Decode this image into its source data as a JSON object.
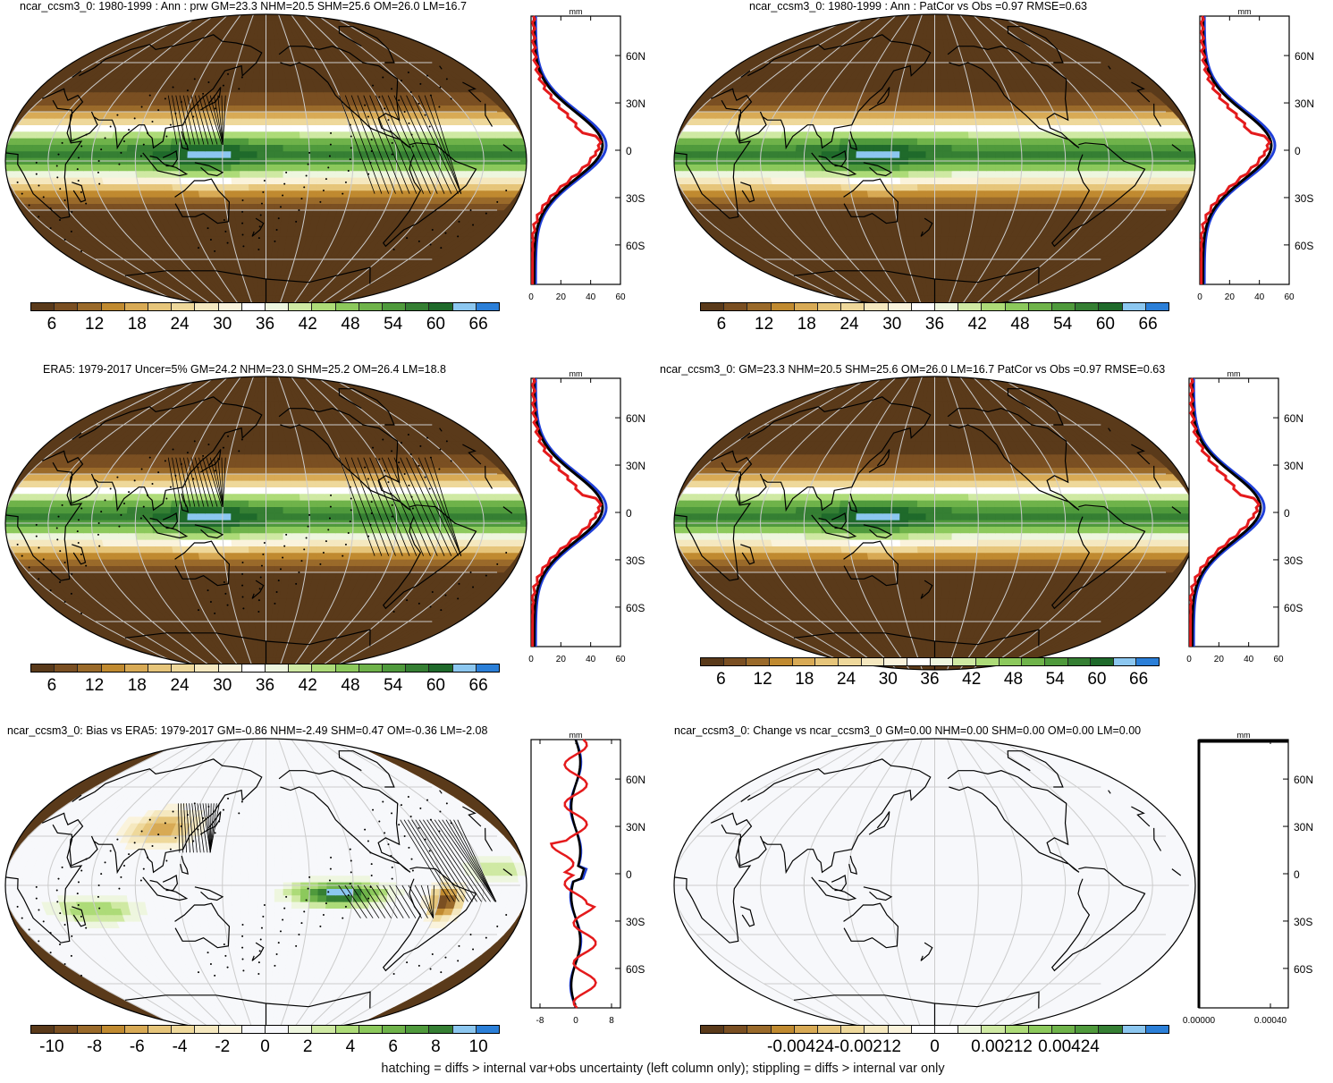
{
  "colors": {
    "land": "#f7f8fb",
    "blue": "#1f3fd8",
    "black": "#000000",
    "red": "#e41a1c",
    "grid": "#cccccc",
    "prw_scale": [
      "#5a3a1a",
      "#7a4f22",
      "#9a6a2a",
      "#c08a30",
      "#d8aa55",
      "#e6c57a",
      "#eed89b",
      "#f5e8bf",
      "#faf3dc",
      "#ffffff",
      "#eef6df",
      "#cfe9a3",
      "#addb78",
      "#8cc95c",
      "#6fb34a",
      "#4f9a3c",
      "#357f33",
      "#1f6a2b",
      "#8cc7f0",
      "#2b7fd8"
    ],
    "bias_scale": [
      "#5a3a1a",
      "#7a4f22",
      "#9a6a2a",
      "#c08a30",
      "#d8aa55",
      "#e6c57a",
      "#eed89b",
      "#f5e8bf",
      "#faf3dc",
      "#f7f8fb",
      "#f7f8fb",
      "#eef6df",
      "#cfe9a3",
      "#addb78",
      "#8cc95c",
      "#6fb34a",
      "#4f9a3c",
      "#357f33",
      "#8cc7f0",
      "#2b7fd8"
    ]
  },
  "panels": [
    {
      "title": "ncar_ccsm3_0: 1980-1999 : Ann : prw GM=23.3 NHM=20.5 SHM=25.6 OM=26.0 LM=16.7",
      "kind": "prw",
      "hatched": true,
      "colorbar_labels": [
        "6",
        "12",
        "18",
        "24",
        "30",
        "36",
        "42",
        "48",
        "54",
        "60",
        "66"
      ],
      "profile": {
        "unit": "mm",
        "x_ticks": [
          "0",
          "20",
          "40",
          "60"
        ],
        "lat_ticks": [
          "60N",
          "30N",
          "0",
          "30S",
          "60S"
        ],
        "xmin": 0,
        "xmax": 60
      }
    },
    {
      "title": "ncar_ccsm3_0: 1980-1999 : Ann : PatCor vs Obs =0.97 RMSE=0.63",
      "kind": "prw",
      "hatched": false,
      "colorbar_labels": [
        "6",
        "12",
        "18",
        "24",
        "30",
        "36",
        "42",
        "48",
        "54",
        "60",
        "66"
      ],
      "profile": {
        "unit": "mm",
        "x_ticks": [
          "0",
          "20",
          "40",
          "60"
        ],
        "lat_ticks": [
          "60N",
          "30N",
          "0",
          "30S",
          "60S"
        ],
        "xmin": 0,
        "xmax": 60
      }
    },
    {
      "title": "ERA5: 1979-2017 Uncer=5% GM=24.2 NHM=23.0 SHM=25.2 OM=26.4 LM=18.8",
      "kind": "prw",
      "hatched": true,
      "colorbar_labels": [
        "6",
        "12",
        "18",
        "24",
        "30",
        "36",
        "42",
        "48",
        "54",
        "60",
        "66"
      ],
      "profile": {
        "unit": "mm",
        "x_ticks": [
          "0",
          "20",
          "40",
          "60"
        ],
        "lat_ticks": [
          "60N",
          "30N",
          "0",
          "30S",
          "60S"
        ],
        "xmin": 0,
        "xmax": 60
      }
    },
    {
      "title": "ncar_ccsm3_0: GM=23.3 NHM=20.5 SHM=25.6 OM=26.0 LM=16.7 PatCor vs Obs =0.97 RMSE=0.63",
      "kind": "prw",
      "hatched": false,
      "colorbar_labels": [
        "6",
        "12",
        "18",
        "24",
        "30",
        "36",
        "42",
        "48",
        "54",
        "60",
        "66"
      ],
      "profile": {
        "unit": "mm",
        "x_ticks": [
          "0",
          "20",
          "40",
          "60"
        ],
        "lat_ticks": [
          "60N",
          "30N",
          "0",
          "30S",
          "60S"
        ],
        "xmin": 0,
        "xmax": 60
      }
    },
    {
      "title": "ncar_ccsm3_0: Bias vs ERA5: 1979-2017 GM=-0.86 NHM=-2.49 SHM=0.47 OM=-0.36 LM=-2.08",
      "kind": "bias",
      "hatched": true,
      "colorbar_labels": [
        "-10",
        "-8",
        "-6",
        "-4",
        "-2",
        "0",
        "2",
        "4",
        "6",
        "8",
        "10"
      ],
      "profile": {
        "unit": "mm",
        "x_ticks": [
          "-8",
          "0",
          "8"
        ],
        "lat_ticks": [
          "60N",
          "30N",
          "0",
          "30S",
          "60S"
        ],
        "xmin": -10,
        "xmax": 10
      }
    },
    {
      "title": "ncar_ccsm3_0: Change vs ncar_ccsm3_0 GM=0.00 NHM=0.00 SHM=0.00 OM=0.00 LM=0.00",
      "kind": "change",
      "hatched": false,
      "colorbar_labels": [
        "-0.00424",
        "-0.00212",
        "0",
        "0.00212",
        "0.00424"
      ],
      "profile": {
        "unit": "mm",
        "x_ticks": [
          "0.00000",
          "0.00040"
        ],
        "lat_ticks": [
          "60N",
          "30N",
          "0",
          "30S",
          "60S"
        ],
        "xmin": 0,
        "xmax": 0.0005
      }
    }
  ],
  "footer": "hatching = diffs > internal var+obs uncertainty (left column only); stippling = diffs > internal var only"
}
